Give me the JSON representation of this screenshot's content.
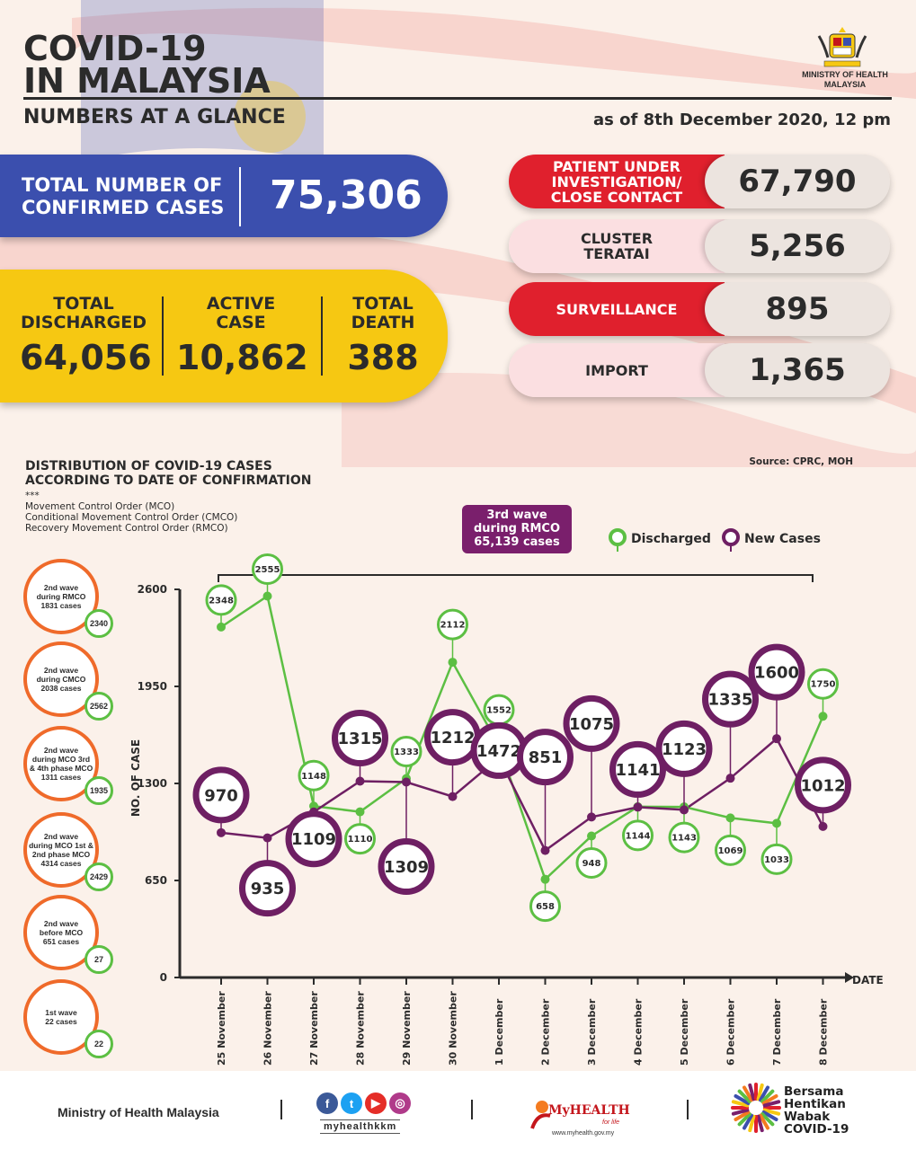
{
  "header": {
    "title_line1": "COVID-19",
    "title_line2": "IN MALAYSIA",
    "subtitle": "NUMBERS AT A GLANCE",
    "as_of": "as of 8th December 2020, 12 pm",
    "ministry_line1": "MINISTRY OF HEALTH",
    "ministry_line2": "MALAYSIA"
  },
  "totals": {
    "confirmed_label_1": "TOTAL NUMBER OF",
    "confirmed_label_2": "CONFIRMED CASES",
    "confirmed_value": "75,306",
    "discharged_label_1": "TOTAL",
    "discharged_label_2": "DISCHARGED",
    "discharged_value": "64,056",
    "active_label_1": "ACTIVE",
    "active_label_2": "CASE",
    "active_value": "10,862",
    "death_label_1": "TOTAL",
    "death_label_2": "DEATH",
    "death_value": "388"
  },
  "categories": [
    {
      "label_1": "PATIENT UNDER",
      "label_2": "INVESTIGATION/",
      "label_3": "CLOSE CONTACT",
      "value": "67,790"
    },
    {
      "label_1": "CLUSTER",
      "label_2": "TERATAI",
      "label_3": "",
      "value": "5,256"
    },
    {
      "label_1": "SURVEILLANCE",
      "label_2": "",
      "label_3": "",
      "value": "895"
    },
    {
      "label_1": "IMPORT",
      "label_2": "",
      "label_3": "",
      "value": "1,365"
    }
  ],
  "section": {
    "title_1": "DISTRIBUTION OF COVID-19 CASES",
    "title_2": "ACCORDING TO DATE OF CONFIRMATION",
    "notes_mark": "***",
    "note_1": "Movement Control Order (MCO)",
    "note_2": "Conditional Movement Control Order (CMCO)",
    "note_3": "Recovery Movement Control Order (RMCO)",
    "source": "Source: CPRC, MOH",
    "wave3_1": "3rd wave",
    "wave3_2": "during RMCO",
    "wave3_3": "65,139 cases",
    "legend_discharged": "Discharged",
    "legend_new": "New Cases"
  },
  "waves": [
    {
      "l1": "2nd wave",
      "l2": "during RMCO",
      "l3": "1831 cases",
      "l4": "",
      "badge": "2340"
    },
    {
      "l1": "2nd wave",
      "l2": "during CMCO",
      "l3": "2038 cases",
      "l4": "",
      "badge": "2562"
    },
    {
      "l1": "2nd wave",
      "l2": "during MCO 3rd",
      "l3": "& 4th phase MCO",
      "l4": "1311 cases",
      "badge": "1935"
    },
    {
      "l1": "2nd wave",
      "l2": "during MCO 1st &",
      "l3": "2nd phase MCO",
      "l4": "4314 cases",
      "badge": "2429"
    },
    {
      "l1": "2nd wave",
      "l2": "before MCO",
      "l3": "651 cases",
      "l4": "",
      "badge": "27"
    },
    {
      "l1": "1st wave",
      "l2": "22 cases",
      "l3": "",
      "l4": "",
      "badge": "22"
    }
  ],
  "chart_data": {
    "type": "line",
    "ylabel": "NO. OF CASE",
    "xlabel": "DATE",
    "ylim": [
      0,
      2600
    ],
    "yticks": [
      0,
      650,
      1300,
      1950,
      2600
    ],
    "categories": [
      "25 November",
      "26 November",
      "27 November",
      "28 November",
      "29 November",
      "30 November",
      "1 December",
      "2 December",
      "3 December",
      "4 December",
      "5 December",
      "6 December",
      "7 December",
      "8 December"
    ],
    "series": [
      {
        "name": "Discharged",
        "color": "#5cbf43",
        "values": [
          2348,
          2555,
          1148,
          1110,
          1333,
          2112,
          1552,
          658,
          948,
          1144,
          1143,
          1069,
          1033,
          1750
        ]
      },
      {
        "name": "New Cases",
        "color": "#6e1f63",
        "values": [
          970,
          935,
          1109,
          1315,
          1309,
          1212,
          1472,
          851,
          1075,
          1141,
          1123,
          1335,
          1600,
          1012
        ]
      }
    ]
  },
  "footer": {
    "ministry": "Ministry of Health Malaysia",
    "handle": "myhealthkkm",
    "myhealth": "MyHEALTH",
    "myhealth_sub": "for life",
    "myhealth_url": "www.myhealth.gov.my",
    "bersama_1": "Bersama",
    "bersama_2": "Hentikan",
    "bersama_3": "Wabak",
    "bersama_4": "COVID-19"
  }
}
